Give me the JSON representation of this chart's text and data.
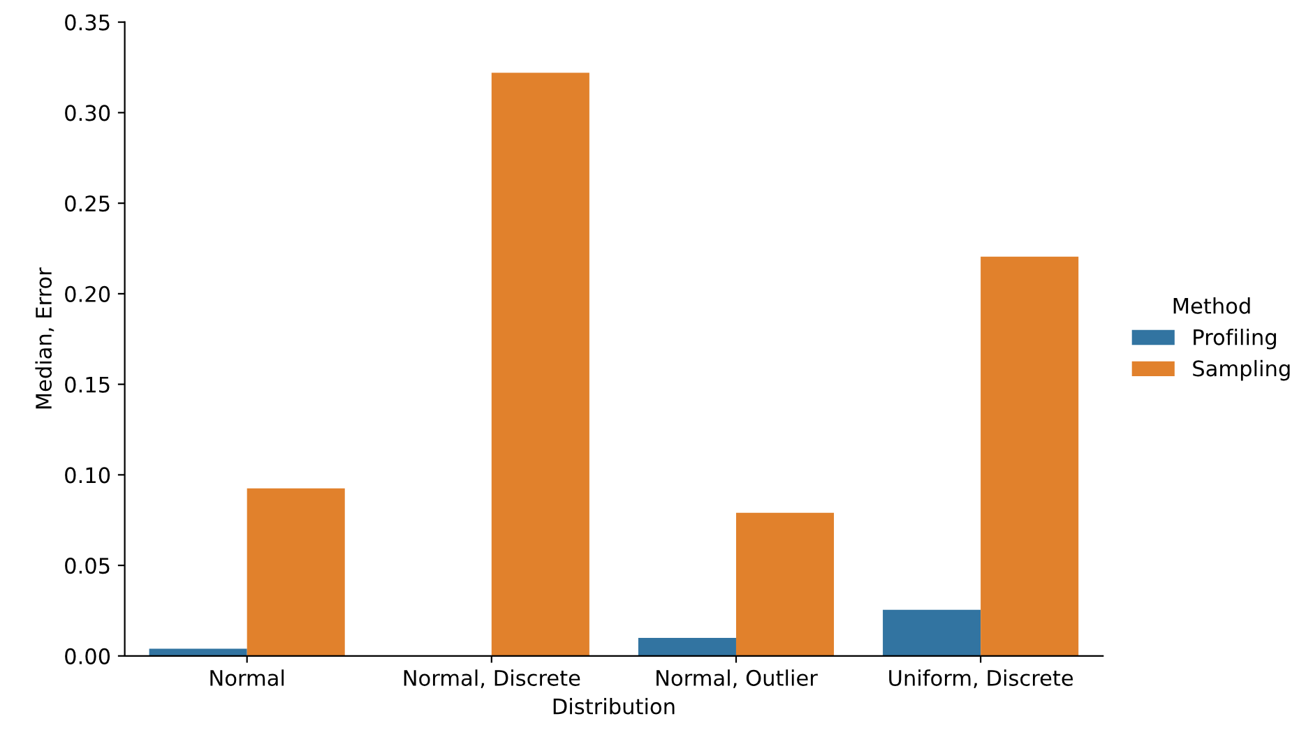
{
  "chart_data": {
    "type": "bar",
    "xlabel": "Distribution",
    "ylabel": "Median, Error",
    "legend_title": "Method",
    "categories": [
      "Normal",
      "Normal, Discrete",
      "Normal, Outlier",
      "Uniform, Discrete"
    ],
    "series": [
      {
        "name": "Profiling",
        "color": "#3274a1",
        "values": [
          0.004,
          0.0,
          0.01,
          0.0255
        ]
      },
      {
        "name": "Sampling",
        "color": "#e1812c",
        "values": [
          0.0925,
          0.322,
          0.079,
          0.2205
        ]
      }
    ],
    "ylim": [
      0,
      0.35
    ],
    "yticks": [
      {
        "value": 0,
        "label": "0.00"
      },
      {
        "value": 0.05,
        "label": "0.05"
      },
      {
        "value": 0.1,
        "label": "0.10"
      },
      {
        "value": 0.15,
        "label": "0.15"
      },
      {
        "value": 0.2,
        "label": "0.20"
      },
      {
        "value": 0.25,
        "label": "0.25"
      },
      {
        "value": 0.3,
        "label": "0.30"
      },
      {
        "value": 0.35,
        "label": "0.35"
      }
    ],
    "grid": false,
    "legend": "right"
  }
}
